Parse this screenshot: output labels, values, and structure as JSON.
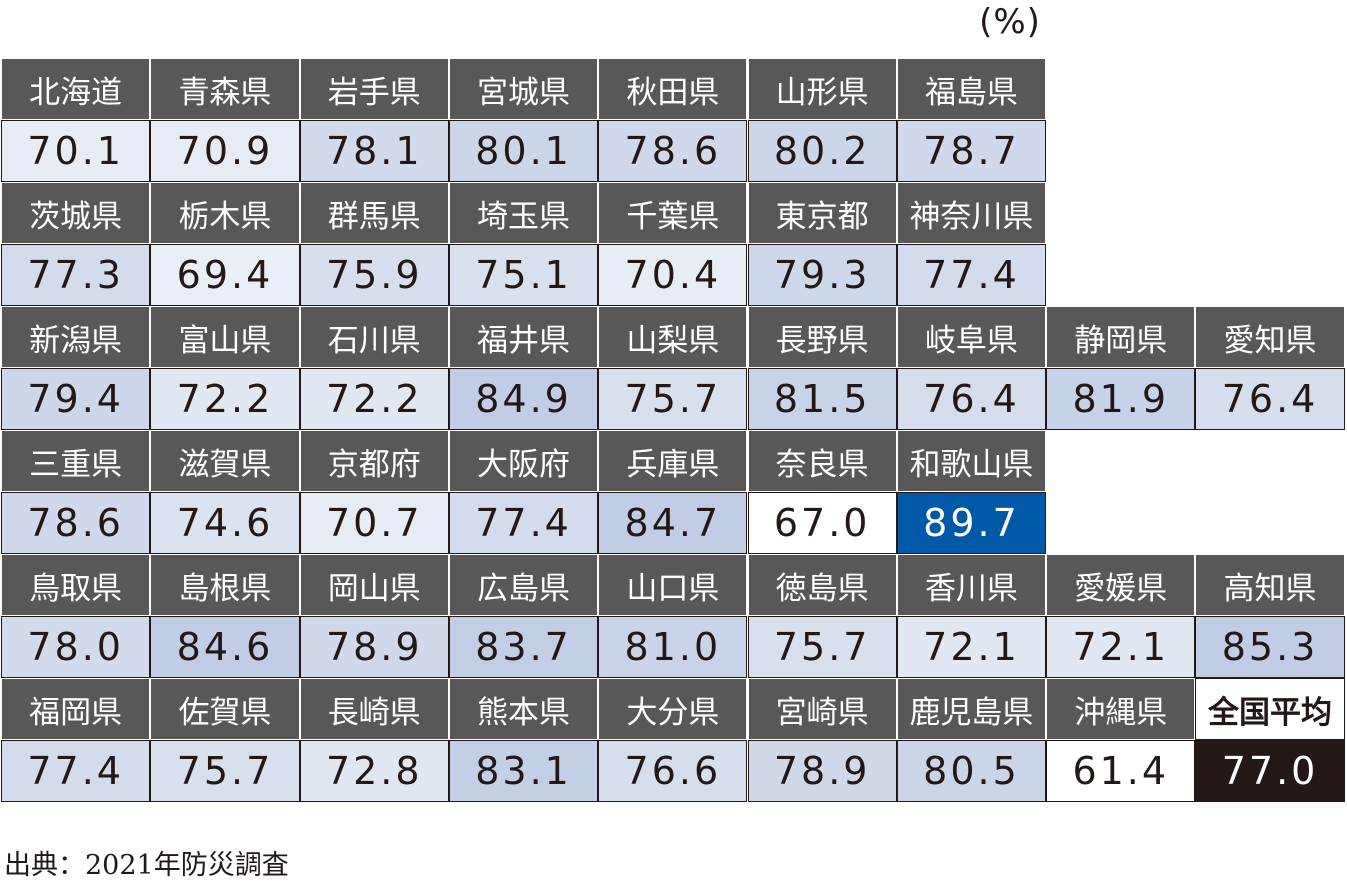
{
  "unit_label": "(%)",
  "source": "出典：2021年防災調査",
  "chart_data": {
    "type": "table",
    "color_scale": {
      "low": "#ffffff",
      "mid": "#c0cde4",
      "high": "#0058a8"
    },
    "national_average": {
      "name": "全国平均",
      "value": 77.0,
      "label": "77.0"
    },
    "rows": [
      [
        {
          "name": "北海道",
          "value": 70.1
        },
        {
          "name": "青森県",
          "value": 70.9
        },
        {
          "name": "岩手県",
          "value": 78.1
        },
        {
          "name": "宮城県",
          "value": 80.1
        },
        {
          "name": "秋田県",
          "value": 78.6
        },
        {
          "name": "山形県",
          "value": 80.2
        },
        {
          "name": "福島県",
          "value": 78.7
        }
      ],
      [
        {
          "name": "茨城県",
          "value": 77.3
        },
        {
          "name": "栃木県",
          "value": 69.4
        },
        {
          "name": "群馬県",
          "value": 75.9
        },
        {
          "name": "埼玉県",
          "value": 75.1
        },
        {
          "name": "千葉県",
          "value": 70.4
        },
        {
          "name": "東京都",
          "value": 79.3
        },
        {
          "name": "神奈川県",
          "value": 77.4
        }
      ],
      [
        {
          "name": "新潟県",
          "value": 79.4
        },
        {
          "name": "富山県",
          "value": 72.2
        },
        {
          "name": "石川県",
          "value": 72.2
        },
        {
          "name": "福井県",
          "value": 84.9
        },
        {
          "name": "山梨県",
          "value": 75.7
        },
        {
          "name": "長野県",
          "value": 81.5
        },
        {
          "name": "岐阜県",
          "value": 76.4
        },
        {
          "name": "静岡県",
          "value": 81.9
        },
        {
          "name": "愛知県",
          "value": 76.4
        }
      ],
      [
        {
          "name": "三重県",
          "value": 78.6
        },
        {
          "name": "滋賀県",
          "value": 74.6
        },
        {
          "name": "京都府",
          "value": 70.7
        },
        {
          "name": "大阪府",
          "value": 77.4
        },
        {
          "name": "兵庫県",
          "value": 84.7
        },
        {
          "name": "奈良県",
          "value": 67.0
        },
        {
          "name": "和歌山県",
          "value": 89.7
        }
      ],
      [
        {
          "name": "鳥取県",
          "value": 78.0
        },
        {
          "name": "島根県",
          "value": 84.6
        },
        {
          "name": "岡山県",
          "value": 78.9
        },
        {
          "name": "広島県",
          "value": 83.7
        },
        {
          "name": "山口県",
          "value": 81.0
        },
        {
          "name": "徳島県",
          "value": 75.7
        },
        {
          "name": "香川県",
          "value": 72.1
        },
        {
          "name": "愛媛県",
          "value": 72.1
        },
        {
          "name": "高知県",
          "value": 85.3
        }
      ],
      [
        {
          "name": "福岡県",
          "value": 77.4
        },
        {
          "name": "佐賀県",
          "value": 75.7
        },
        {
          "name": "長崎県",
          "value": 72.8
        },
        {
          "name": "熊本県",
          "value": 83.1
        },
        {
          "name": "大分県",
          "value": 76.6
        },
        {
          "name": "宮崎県",
          "value": 78.9
        },
        {
          "name": "鹿児島県",
          "value": 80.5
        },
        {
          "name": "沖縄県",
          "value": 61.4
        },
        {
          "name": "全国平均",
          "value": 77.0
        }
      ]
    ]
  }
}
